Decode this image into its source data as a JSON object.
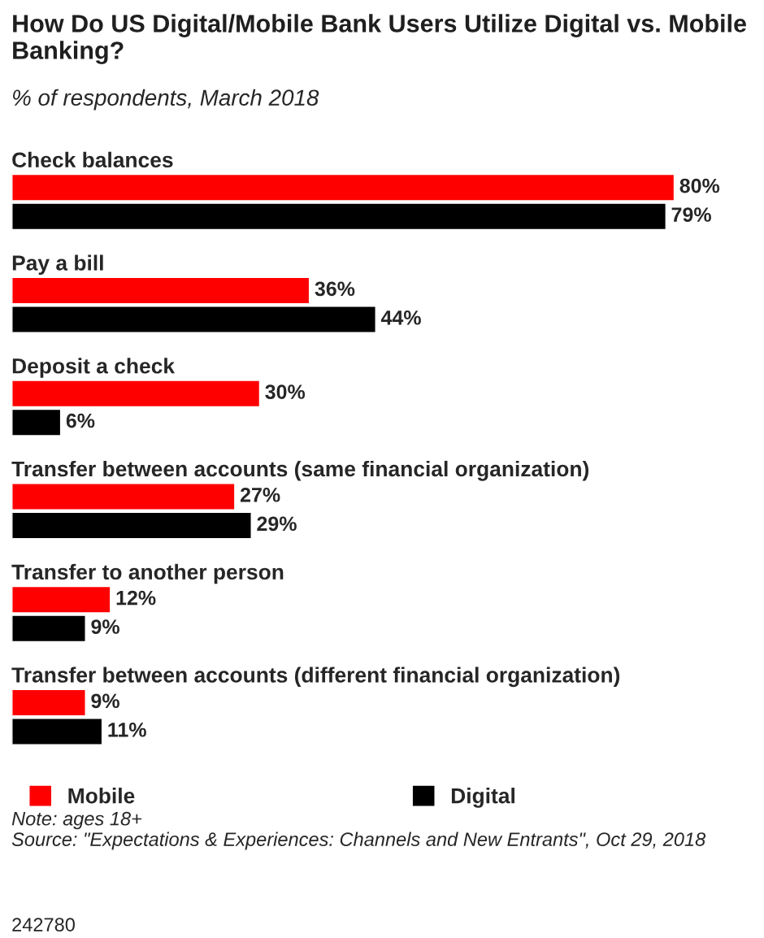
{
  "chart_data": {
    "type": "bar",
    "orientation": "horizontal",
    "title": "How Do US Digital/Mobile Bank Users Utilize Digital vs. Mobile Banking?",
    "subtitle": "% of respondents, March 2018",
    "categories": [
      "Check balances",
      "Pay a bill",
      "Deposit a check",
      "Transfer between accounts (same financial organization)",
      "Transfer to another person",
      "Transfer between accounts (different financial organization)"
    ],
    "series": [
      {
        "name": "Mobile",
        "color": "#ff0000",
        "values": [
          80,
          36,
          30,
          27,
          12,
          9
        ],
        "value_labels": [
          "80%",
          "36%",
          "30%",
          "27%",
          "12%",
          "9%"
        ]
      },
      {
        "name": "Digital",
        "color": "#000000",
        "values": [
          79,
          44,
          6,
          29,
          9,
          11
        ],
        "value_labels": [
          "79%",
          "44%",
          "6%",
          "29%",
          "9%",
          "11%"
        ]
      }
    ],
    "legend": "bottom",
    "annotations": [
      "Note: ages 18+",
      "Source: \"Expectations & Experiences: Channels and New Entrants\", Oct 29, 2018",
      "242780"
    ]
  }
}
